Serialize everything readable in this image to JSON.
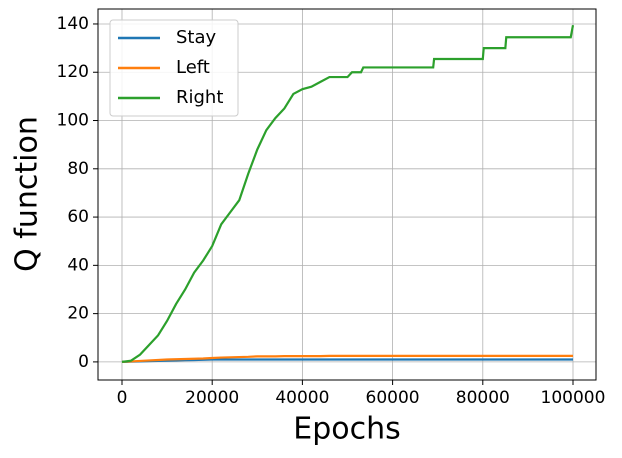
{
  "chart_data": {
    "type": "line",
    "xlabel": "Epochs",
    "ylabel": "Q function",
    "x": [
      0,
      2000,
      4000,
      6000,
      8000,
      10000,
      12000,
      14000,
      16000,
      18000,
      20000,
      22000,
      24000,
      26000,
      28000,
      30000,
      32000,
      34000,
      36000,
      38000,
      40000,
      42000,
      44000,
      46000,
      50000,
      51000,
      53000,
      53500,
      69000,
      69200,
      80000,
      80200,
      85000,
      85200,
      99500,
      100000
    ],
    "series": [
      {
        "name": "Stay",
        "color": "#1f77b4",
        "values": [
          0,
          0.1,
          0.2,
          0.3,
          0.4,
          0.5,
          0.6,
          0.7,
          0.8,
          0.9,
          1,
          1,
          1,
          1,
          1,
          1,
          1,
          1,
          1,
          1,
          1,
          1,
          1,
          1,
          1,
          1,
          1,
          1,
          1,
          1,
          1,
          1,
          1,
          1,
          1,
          1
        ]
      },
      {
        "name": "Left",
        "color": "#ff7f0e",
        "values": [
          0,
          0.2,
          0.4,
          0.6,
          0.8,
          1,
          1.1,
          1.2,
          1.3,
          1.4,
          1.6,
          1.8,
          1.9,
          2,
          2.1,
          2.3,
          2.3,
          2.3,
          2.4,
          2.4,
          2.4,
          2.4,
          2.4,
          2.5,
          2.5,
          2.5,
          2.5,
          2.5,
          2.5,
          2.5,
          2.5,
          2.5,
          2.5,
          2.5,
          2.5,
          2.5
        ]
      },
      {
        "name": "Right",
        "color": "#2ca02c",
        "values": [
          0,
          0.5,
          3,
          7,
          11,
          17,
          24,
          30,
          37,
          42,
          48,
          57,
          62,
          67,
          78,
          88,
          96,
          101,
          105,
          111,
          113,
          114,
          116,
          118,
          118,
          120,
          120,
          122,
          122,
          125.5,
          125.5,
          130,
          130,
          134.5,
          134.5,
          139.5
        ]
      }
    ],
    "xlim": [
      -5320,
      105100
    ],
    "ylim": [
      -7.5,
      146.2
    ],
    "xticks": [
      0,
      20000,
      40000,
      60000,
      80000,
      100000
    ],
    "yticks": [
      0,
      20,
      40,
      60,
      80,
      100,
      120,
      140
    ],
    "grid": true,
    "legend": "upper left"
  }
}
